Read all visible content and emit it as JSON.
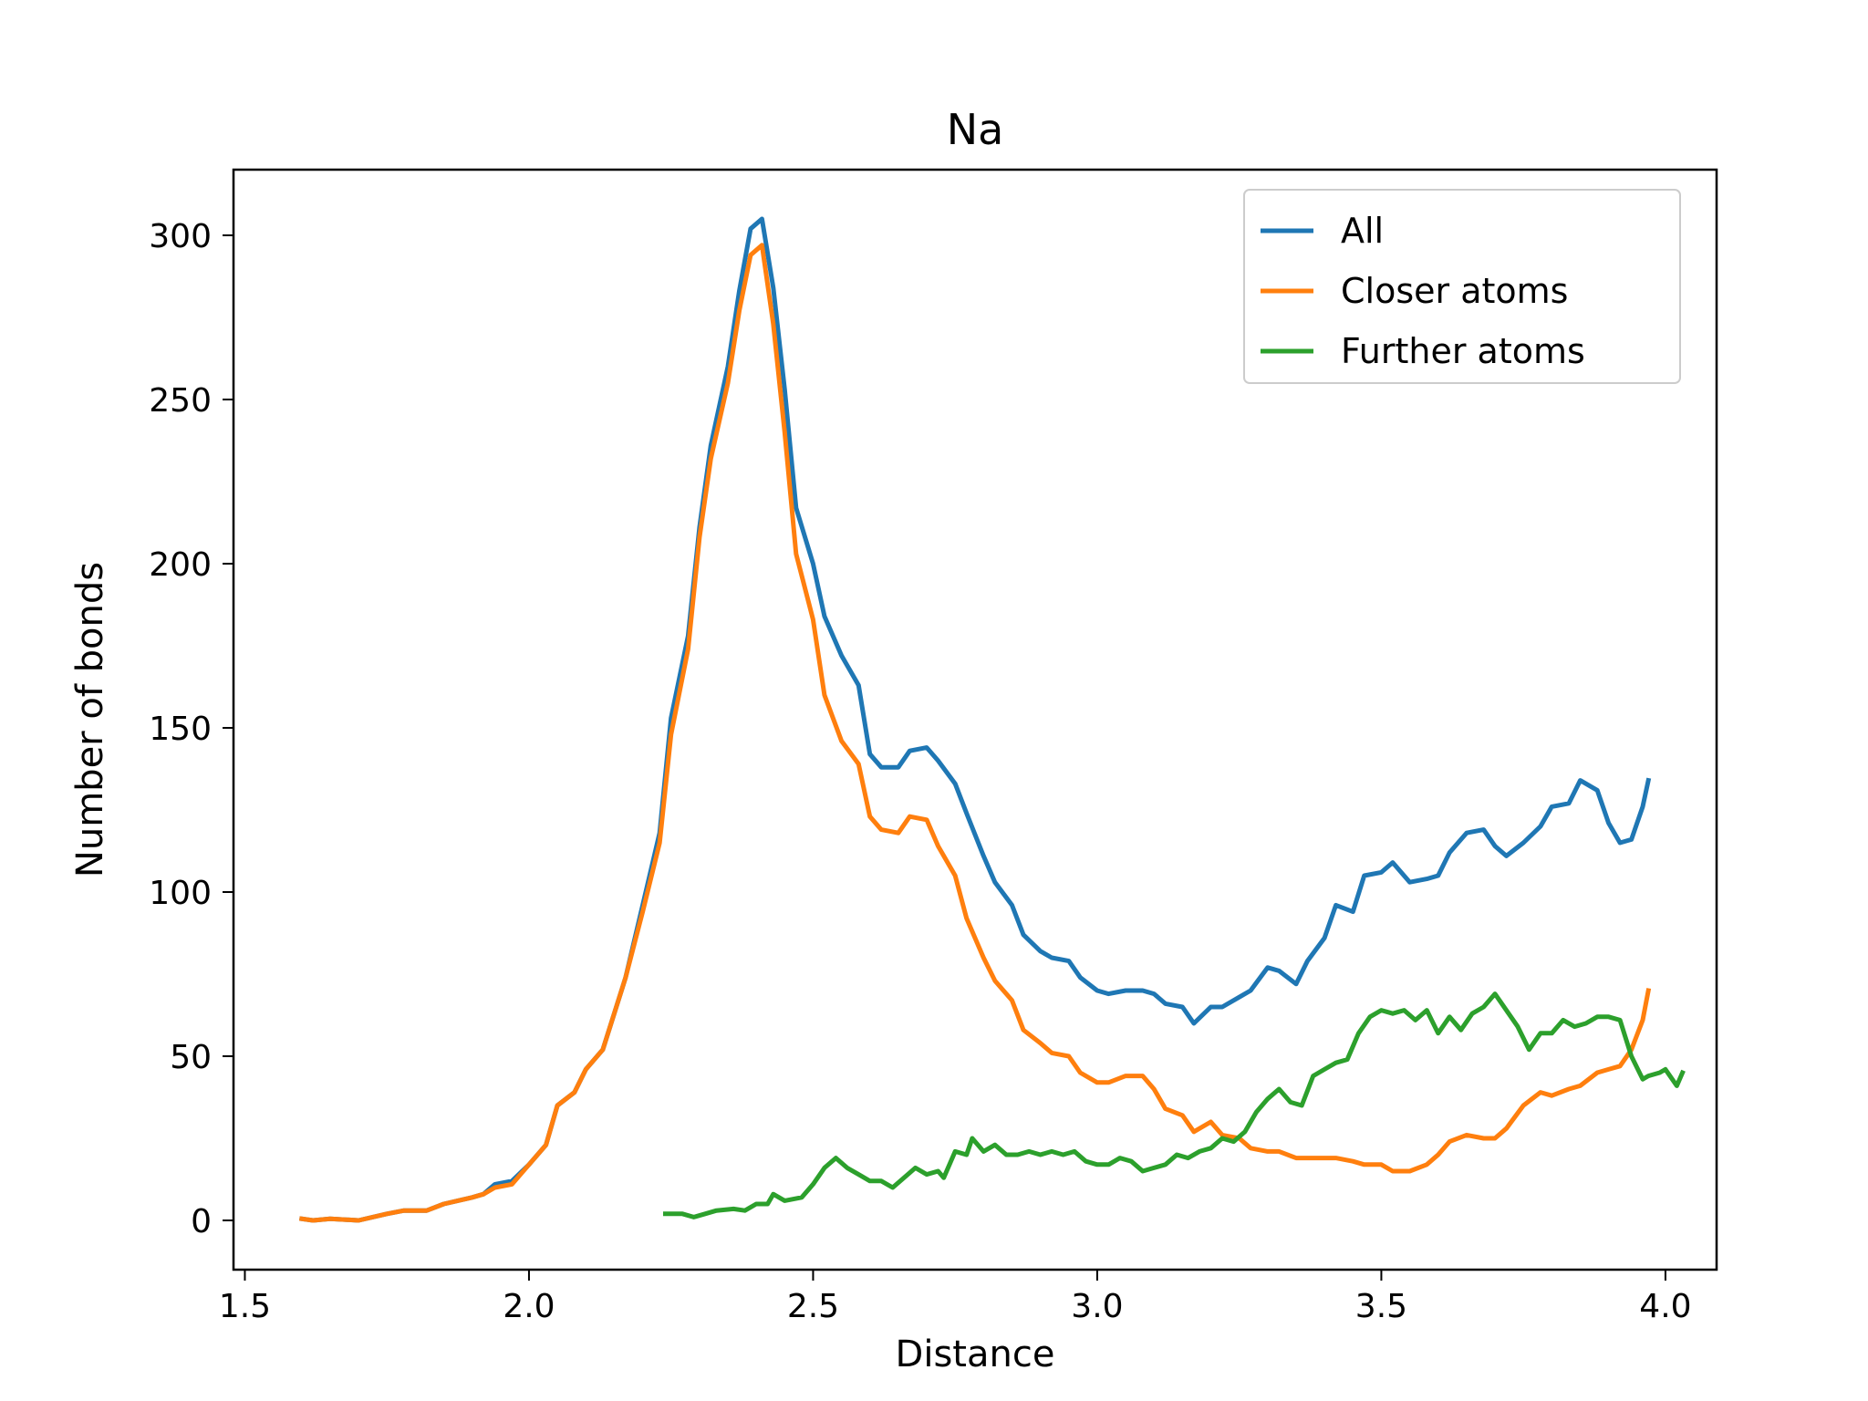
{
  "chart_data": {
    "type": "line",
    "title": "Na",
    "xlabel": "Distance",
    "ylabel": "Number of bonds",
    "xlim": [
      1.48,
      4.09
    ],
    "ylim": [
      -15,
      320
    ],
    "xticks": [
      1.5,
      2.0,
      2.5,
      3.0,
      3.5,
      4.0
    ],
    "xtick_labels": [
      "1.5",
      "2.0",
      "2.5",
      "3.0",
      "3.5",
      "4.0"
    ],
    "yticks": [
      0,
      50,
      100,
      150,
      200,
      250,
      300
    ],
    "ytick_labels": [
      "0",
      "50",
      "100",
      "150",
      "200",
      "250",
      "300"
    ],
    "grid": false,
    "legend_position": "top-right",
    "series": [
      {
        "name": "All",
        "color": "#1f77b4",
        "points": [
          [
            1.6,
            0.5
          ],
          [
            1.62,
            0
          ],
          [
            1.65,
            0.5
          ],
          [
            1.7,
            0
          ],
          [
            1.75,
            2
          ],
          [
            1.78,
            3
          ],
          [
            1.82,
            3
          ],
          [
            1.85,
            5
          ],
          [
            1.9,
            7
          ],
          [
            1.92,
            8
          ],
          [
            1.94,
            11
          ],
          [
            1.97,
            12
          ],
          [
            2.0,
            17
          ],
          [
            2.03,
            23
          ],
          [
            2.05,
            35
          ],
          [
            2.08,
            39
          ],
          [
            2.1,
            46
          ],
          [
            2.13,
            52
          ],
          [
            2.15,
            63
          ],
          [
            2.17,
            74
          ],
          [
            2.2,
            96
          ],
          [
            2.23,
            118
          ],
          [
            2.25,
            153
          ],
          [
            2.28,
            178
          ],
          [
            2.3,
            211
          ],
          [
            2.32,
            236
          ],
          [
            2.35,
            260
          ],
          [
            2.37,
            283
          ],
          [
            2.39,
            302
          ],
          [
            2.41,
            305
          ],
          [
            2.43,
            284
          ],
          [
            2.45,
            253
          ],
          [
            2.47,
            217
          ],
          [
            2.5,
            200
          ],
          [
            2.52,
            184
          ],
          [
            2.55,
            172
          ],
          [
            2.58,
            163
          ],
          [
            2.6,
            142
          ],
          [
            2.62,
            138
          ],
          [
            2.65,
            138
          ],
          [
            2.67,
            143
          ],
          [
            2.7,
            144
          ],
          [
            2.72,
            140
          ],
          [
            2.75,
            133
          ],
          [
            2.77,
            124
          ],
          [
            2.8,
            111
          ],
          [
            2.82,
            103
          ],
          [
            2.85,
            96
          ],
          [
            2.87,
            87
          ],
          [
            2.9,
            82
          ],
          [
            2.92,
            80
          ],
          [
            2.95,
            79
          ],
          [
            2.97,
            74
          ],
          [
            3.0,
            70
          ],
          [
            3.02,
            69
          ],
          [
            3.05,
            70
          ],
          [
            3.08,
            70
          ],
          [
            3.1,
            69
          ],
          [
            3.12,
            66
          ],
          [
            3.15,
            65
          ],
          [
            3.17,
            60
          ],
          [
            3.2,
            65
          ],
          [
            3.22,
            65
          ],
          [
            3.25,
            68
          ],
          [
            3.27,
            70
          ],
          [
            3.3,
            77
          ],
          [
            3.32,
            76
          ],
          [
            3.35,
            72
          ],
          [
            3.37,
            79
          ],
          [
            3.4,
            86
          ],
          [
            3.42,
            96
          ],
          [
            3.45,
            94
          ],
          [
            3.47,
            105
          ],
          [
            3.5,
            106
          ],
          [
            3.52,
            109
          ],
          [
            3.55,
            103
          ],
          [
            3.58,
            104
          ],
          [
            3.6,
            105
          ],
          [
            3.62,
            112
          ],
          [
            3.65,
            118
          ],
          [
            3.68,
            119
          ],
          [
            3.7,
            114
          ],
          [
            3.72,
            111
          ],
          [
            3.75,
            115
          ],
          [
            3.78,
            120
          ],
          [
            3.8,
            126
          ],
          [
            3.83,
            127
          ],
          [
            3.85,
            134
          ],
          [
            3.88,
            131
          ],
          [
            3.9,
            121
          ],
          [
            3.92,
            115
          ],
          [
            3.94,
            116
          ],
          [
            3.96,
            126
          ],
          [
            3.97,
            134
          ]
        ]
      },
      {
        "name": "Closer atoms",
        "color": "#ff7f0e",
        "points": [
          [
            1.6,
            0.5
          ],
          [
            1.62,
            0
          ],
          [
            1.65,
            0.5
          ],
          [
            1.7,
            0
          ],
          [
            1.75,
            2
          ],
          [
            1.78,
            3
          ],
          [
            1.82,
            3
          ],
          [
            1.85,
            5
          ],
          [
            1.9,
            7
          ],
          [
            1.92,
            8
          ],
          [
            1.94,
            10
          ],
          [
            1.97,
            11
          ],
          [
            2.0,
            17
          ],
          [
            2.03,
            23
          ],
          [
            2.05,
            35
          ],
          [
            2.08,
            39
          ],
          [
            2.1,
            46
          ],
          [
            2.13,
            52
          ],
          [
            2.15,
            63
          ],
          [
            2.17,
            74
          ],
          [
            2.2,
            94
          ],
          [
            2.23,
            115
          ],
          [
            2.25,
            148
          ],
          [
            2.28,
            174
          ],
          [
            2.3,
            208
          ],
          [
            2.32,
            232
          ],
          [
            2.35,
            255
          ],
          [
            2.37,
            277
          ],
          [
            2.39,
            294
          ],
          [
            2.41,
            297
          ],
          [
            2.43,
            273
          ],
          [
            2.45,
            240
          ],
          [
            2.47,
            203
          ],
          [
            2.5,
            183
          ],
          [
            2.52,
            160
          ],
          [
            2.55,
            146
          ],
          [
            2.58,
            139
          ],
          [
            2.6,
            123
          ],
          [
            2.62,
            119
          ],
          [
            2.65,
            118
          ],
          [
            2.67,
            123
          ],
          [
            2.7,
            122
          ],
          [
            2.72,
            114
          ],
          [
            2.75,
            105
          ],
          [
            2.77,
            92
          ],
          [
            2.8,
            80
          ],
          [
            2.82,
            73
          ],
          [
            2.85,
            67
          ],
          [
            2.87,
            58
          ],
          [
            2.9,
            54
          ],
          [
            2.92,
            51
          ],
          [
            2.95,
            50
          ],
          [
            2.97,
            45
          ],
          [
            3.0,
            42
          ],
          [
            3.02,
            42
          ],
          [
            3.05,
            44
          ],
          [
            3.08,
            44
          ],
          [
            3.1,
            40
          ],
          [
            3.12,
            34
          ],
          [
            3.15,
            32
          ],
          [
            3.17,
            27
          ],
          [
            3.2,
            30
          ],
          [
            3.22,
            26
          ],
          [
            3.25,
            25
          ],
          [
            3.27,
            22
          ],
          [
            3.3,
            21
          ],
          [
            3.32,
            21
          ],
          [
            3.35,
            19
          ],
          [
            3.37,
            19
          ],
          [
            3.4,
            19
          ],
          [
            3.42,
            19
          ],
          [
            3.45,
            18
          ],
          [
            3.47,
            17
          ],
          [
            3.5,
            17
          ],
          [
            3.52,
            15
          ],
          [
            3.55,
            15
          ],
          [
            3.58,
            17
          ],
          [
            3.6,
            20
          ],
          [
            3.62,
            24
          ],
          [
            3.65,
            26
          ],
          [
            3.68,
            25
          ],
          [
            3.7,
            25
          ],
          [
            3.72,
            28
          ],
          [
            3.75,
            35
          ],
          [
            3.78,
            39
          ],
          [
            3.8,
            38
          ],
          [
            3.83,
            40
          ],
          [
            3.85,
            41
          ],
          [
            3.88,
            45
          ],
          [
            3.9,
            46
          ],
          [
            3.92,
            47
          ],
          [
            3.94,
            52
          ],
          [
            3.96,
            61
          ],
          [
            3.97,
            70
          ]
        ]
      },
      {
        "name": "Further atoms",
        "color": "#2ca02c",
        "points": [
          [
            2.24,
            2
          ],
          [
            2.27,
            2
          ],
          [
            2.29,
            1
          ],
          [
            2.31,
            2
          ],
          [
            2.33,
            3
          ],
          [
            2.36,
            3.5
          ],
          [
            2.38,
            3
          ],
          [
            2.4,
            5
          ],
          [
            2.42,
            5
          ],
          [
            2.43,
            8
          ],
          [
            2.45,
            6
          ],
          [
            2.48,
            7
          ],
          [
            2.5,
            11
          ],
          [
            2.52,
            16
          ],
          [
            2.54,
            19
          ],
          [
            2.56,
            16
          ],
          [
            2.58,
            14
          ],
          [
            2.6,
            12
          ],
          [
            2.62,
            12
          ],
          [
            2.64,
            10
          ],
          [
            2.66,
            13
          ],
          [
            2.68,
            16
          ],
          [
            2.7,
            14
          ],
          [
            2.72,
            15
          ],
          [
            2.73,
            13
          ],
          [
            2.75,
            21
          ],
          [
            2.77,
            20
          ],
          [
            2.78,
            25
          ],
          [
            2.8,
            21
          ],
          [
            2.82,
            23
          ],
          [
            2.84,
            20
          ],
          [
            2.86,
            20
          ],
          [
            2.88,
            21
          ],
          [
            2.9,
            20
          ],
          [
            2.92,
            21
          ],
          [
            2.94,
            20
          ],
          [
            2.96,
            21
          ],
          [
            2.98,
            18
          ],
          [
            3.0,
            17
          ],
          [
            3.02,
            17
          ],
          [
            3.04,
            19
          ],
          [
            3.06,
            18
          ],
          [
            3.08,
            15
          ],
          [
            3.1,
            16
          ],
          [
            3.12,
            17
          ],
          [
            3.14,
            20
          ],
          [
            3.16,
            19
          ],
          [
            3.18,
            21
          ],
          [
            3.2,
            22
          ],
          [
            3.22,
            25
          ],
          [
            3.24,
            24
          ],
          [
            3.26,
            27
          ],
          [
            3.28,
            33
          ],
          [
            3.3,
            37
          ],
          [
            3.32,
            40
          ],
          [
            3.34,
            36
          ],
          [
            3.36,
            35
          ],
          [
            3.38,
            44
          ],
          [
            3.4,
            46
          ],
          [
            3.42,
            48
          ],
          [
            3.44,
            49
          ],
          [
            3.46,
            57
          ],
          [
            3.48,
            62
          ],
          [
            3.5,
            64
          ],
          [
            3.52,
            63
          ],
          [
            3.54,
            64
          ],
          [
            3.56,
            61
          ],
          [
            3.58,
            64
          ],
          [
            3.6,
            57
          ],
          [
            3.62,
            62
          ],
          [
            3.64,
            58
          ],
          [
            3.66,
            63
          ],
          [
            3.68,
            65
          ],
          [
            3.7,
            69
          ],
          [
            3.72,
            64
          ],
          [
            3.74,
            59
          ],
          [
            3.76,
            52
          ],
          [
            3.78,
            57
          ],
          [
            3.8,
            57
          ],
          [
            3.82,
            61
          ],
          [
            3.84,
            59
          ],
          [
            3.86,
            60
          ],
          [
            3.88,
            62
          ],
          [
            3.9,
            62
          ],
          [
            3.92,
            61
          ],
          [
            3.94,
            50
          ],
          [
            3.96,
            43
          ],
          [
            3.97,
            44
          ],
          [
            3.99,
            45
          ],
          [
            4.0,
            46
          ],
          [
            4.02,
            41
          ],
          [
            4.03,
            45
          ]
        ]
      }
    ]
  }
}
